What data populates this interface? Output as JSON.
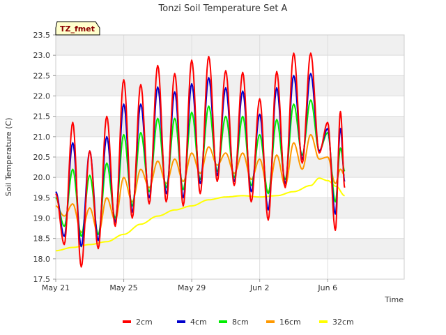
{
  "chart_data": {
    "type": "line",
    "title": "Tonzi Soil Temperature Set A",
    "xlabel": "Time",
    "ylabel": "Soil Temperature (C)",
    "badge": "TZ_fmet",
    "ylim": [
      17.5,
      23.5
    ],
    "yticks": [
      "17.5",
      "18.0",
      "18.5",
      "19.0",
      "19.5",
      "20.0",
      "20.5",
      "21.0",
      "21.5",
      "22.0",
      "22.5",
      "23.0",
      "23.5"
    ],
    "xlim_day": [
      0,
      20.5
    ],
    "xticks": [
      {
        "day": 0,
        "label": "May 21"
      },
      {
        "day": 4,
        "label": "May 25"
      },
      {
        "day": 8,
        "label": "May 29"
      },
      {
        "day": 12,
        "label": "Jun 2"
      },
      {
        "day": 16,
        "label": "Jun 6"
      }
    ],
    "legend_position": "bottom",
    "series": [
      {
        "name": "2cm",
        "color": "#ff0000",
        "peaks": [
          [
            0.0,
            19.6
          ],
          [
            1.0,
            21.35
          ],
          [
            2.0,
            20.65
          ],
          [
            3.0,
            21.5
          ],
          [
            4.0,
            22.4
          ],
          [
            5.0,
            22.28
          ],
          [
            6.0,
            22.75
          ],
          [
            7.0,
            22.55
          ],
          [
            8.0,
            22.88
          ],
          [
            9.0,
            22.97
          ],
          [
            10.0,
            22.62
          ],
          [
            11.0,
            22.58
          ],
          [
            12.0,
            21.93
          ],
          [
            13.0,
            22.6
          ],
          [
            14.0,
            23.05
          ],
          [
            15.0,
            23.05
          ],
          [
            16.0,
            21.35
          ],
          [
            16.75,
            21.62
          ]
        ],
        "troughs": [
          [
            0.5,
            18.35
          ],
          [
            1.5,
            17.8
          ],
          [
            2.5,
            18.25
          ],
          [
            3.5,
            18.8
          ],
          [
            4.5,
            19.0
          ],
          [
            5.5,
            19.35
          ],
          [
            6.5,
            19.4
          ],
          [
            7.5,
            19.3
          ],
          [
            8.5,
            19.6
          ],
          [
            9.5,
            19.9
          ],
          [
            10.5,
            19.8
          ],
          [
            11.5,
            19.4
          ],
          [
            12.5,
            18.95
          ],
          [
            13.5,
            19.75
          ],
          [
            14.5,
            20.35
          ],
          [
            15.5,
            20.6
          ],
          [
            16.45,
            18.7
          ],
          [
            17.0,
            19.75
          ]
        ]
      },
      {
        "name": "4cm",
        "color": "#0000cc",
        "peaks": [
          [
            0.0,
            19.65
          ],
          [
            1.0,
            20.85
          ],
          [
            2.0,
            20.65
          ],
          [
            3.0,
            21.0
          ],
          [
            4.0,
            21.8
          ],
          [
            5.0,
            21.8
          ],
          [
            6.0,
            22.22
          ],
          [
            7.0,
            22.1
          ],
          [
            8.0,
            22.3
          ],
          [
            9.0,
            22.45
          ],
          [
            10.0,
            22.2
          ],
          [
            11.0,
            22.12
          ],
          [
            12.0,
            21.55
          ],
          [
            13.0,
            22.2
          ],
          [
            14.0,
            22.5
          ],
          [
            15.0,
            22.55
          ],
          [
            16.0,
            21.2
          ],
          [
            16.75,
            21.2
          ]
        ],
        "troughs": [
          [
            0.5,
            18.55
          ],
          [
            1.5,
            18.3
          ],
          [
            2.5,
            18.45
          ],
          [
            3.5,
            18.9
          ],
          [
            4.5,
            19.15
          ],
          [
            5.5,
            19.5
          ],
          [
            6.5,
            19.6
          ],
          [
            7.5,
            19.5
          ],
          [
            8.5,
            19.85
          ],
          [
            9.5,
            20.05
          ],
          [
            10.5,
            19.9
          ],
          [
            11.5,
            19.65
          ],
          [
            12.5,
            19.2
          ],
          [
            13.5,
            19.85
          ],
          [
            14.5,
            20.45
          ],
          [
            15.5,
            20.65
          ],
          [
            16.45,
            19.1
          ],
          [
            17.0,
            19.9
          ]
        ]
      },
      {
        "name": "8cm",
        "color": "#00ee00",
        "peaks": [
          [
            0.0,
            19.5
          ],
          [
            1.0,
            20.2
          ],
          [
            2.0,
            20.05
          ],
          [
            3.0,
            20.35
          ],
          [
            4.0,
            21.05
          ],
          [
            5.0,
            21.1
          ],
          [
            6.0,
            21.45
          ],
          [
            7.0,
            21.45
          ],
          [
            8.0,
            21.6
          ],
          [
            9.0,
            21.75
          ],
          [
            10.0,
            21.5
          ],
          [
            11.0,
            21.5
          ],
          [
            12.0,
            21.05
          ],
          [
            13.0,
            21.42
          ],
          [
            14.0,
            21.8
          ],
          [
            15.0,
            21.9
          ],
          [
            16.0,
            21.1
          ],
          [
            16.75,
            20.72
          ]
        ],
        "troughs": [
          [
            0.5,
            18.8
          ],
          [
            1.5,
            18.55
          ],
          [
            2.5,
            18.6
          ],
          [
            3.5,
            19.0
          ],
          [
            4.5,
            19.3
          ],
          [
            5.5,
            19.65
          ],
          [
            6.5,
            19.75
          ],
          [
            7.5,
            19.7
          ],
          [
            8.5,
            19.95
          ],
          [
            9.5,
            20.15
          ],
          [
            10.5,
            20.0
          ],
          [
            11.5,
            19.8
          ],
          [
            12.5,
            19.6
          ],
          [
            13.5,
            19.95
          ],
          [
            14.5,
            20.55
          ],
          [
            15.5,
            20.65
          ],
          [
            16.45,
            19.4
          ],
          [
            17.0,
            20.15
          ]
        ]
      },
      {
        "name": "16cm",
        "color": "#ff9900",
        "peaks": [
          [
            0.0,
            19.3
          ],
          [
            1.0,
            19.35
          ],
          [
            2.0,
            19.25
          ],
          [
            3.0,
            19.5
          ],
          [
            4.0,
            20.0
          ],
          [
            5.0,
            20.2
          ],
          [
            6.0,
            20.4
          ],
          [
            7.0,
            20.45
          ],
          [
            8.0,
            20.6
          ],
          [
            9.0,
            20.75
          ],
          [
            10.0,
            20.6
          ],
          [
            11.0,
            20.6
          ],
          [
            12.0,
            20.45
          ],
          [
            13.0,
            20.55
          ],
          [
            14.0,
            20.85
          ],
          [
            15.0,
            21.05
          ],
          [
            16.0,
            20.5
          ],
          [
            16.75,
            20.2
          ]
        ],
        "troughs": [
          [
            0.5,
            19.05
          ],
          [
            1.5,
            18.65
          ],
          [
            2.5,
            18.6
          ],
          [
            3.5,
            18.95
          ],
          [
            4.5,
            19.4
          ],
          [
            5.5,
            19.75
          ],
          [
            6.5,
            19.85
          ],
          [
            7.5,
            19.9
          ],
          [
            8.5,
            20.1
          ],
          [
            9.5,
            20.3
          ],
          [
            10.5,
            20.1
          ],
          [
            11.5,
            19.95
          ],
          [
            12.5,
            19.65
          ],
          [
            13.5,
            19.8
          ],
          [
            14.5,
            20.2
          ],
          [
            15.5,
            20.45
          ],
          [
            16.45,
            19.85
          ],
          [
            17.0,
            20.05
          ]
        ]
      },
      {
        "name": "32cm",
        "color": "#ffff00",
        "points": [
          [
            0.0,
            18.2
          ],
          [
            1.0,
            18.28
          ],
          [
            2.0,
            18.35
          ],
          [
            3.0,
            18.42
          ],
          [
            4.0,
            18.6
          ],
          [
            5.0,
            18.85
          ],
          [
            6.0,
            19.05
          ],
          [
            7.0,
            19.2
          ],
          [
            8.0,
            19.3
          ],
          [
            9.0,
            19.45
          ],
          [
            10.0,
            19.52
          ],
          [
            11.0,
            19.55
          ],
          [
            12.0,
            19.52
          ],
          [
            13.0,
            19.55
          ],
          [
            14.0,
            19.65
          ],
          [
            15.0,
            19.8
          ],
          [
            15.5,
            19.98
          ],
          [
            16.0,
            19.92
          ],
          [
            16.5,
            19.78
          ],
          [
            17.0,
            19.55
          ]
        ]
      }
    ]
  }
}
